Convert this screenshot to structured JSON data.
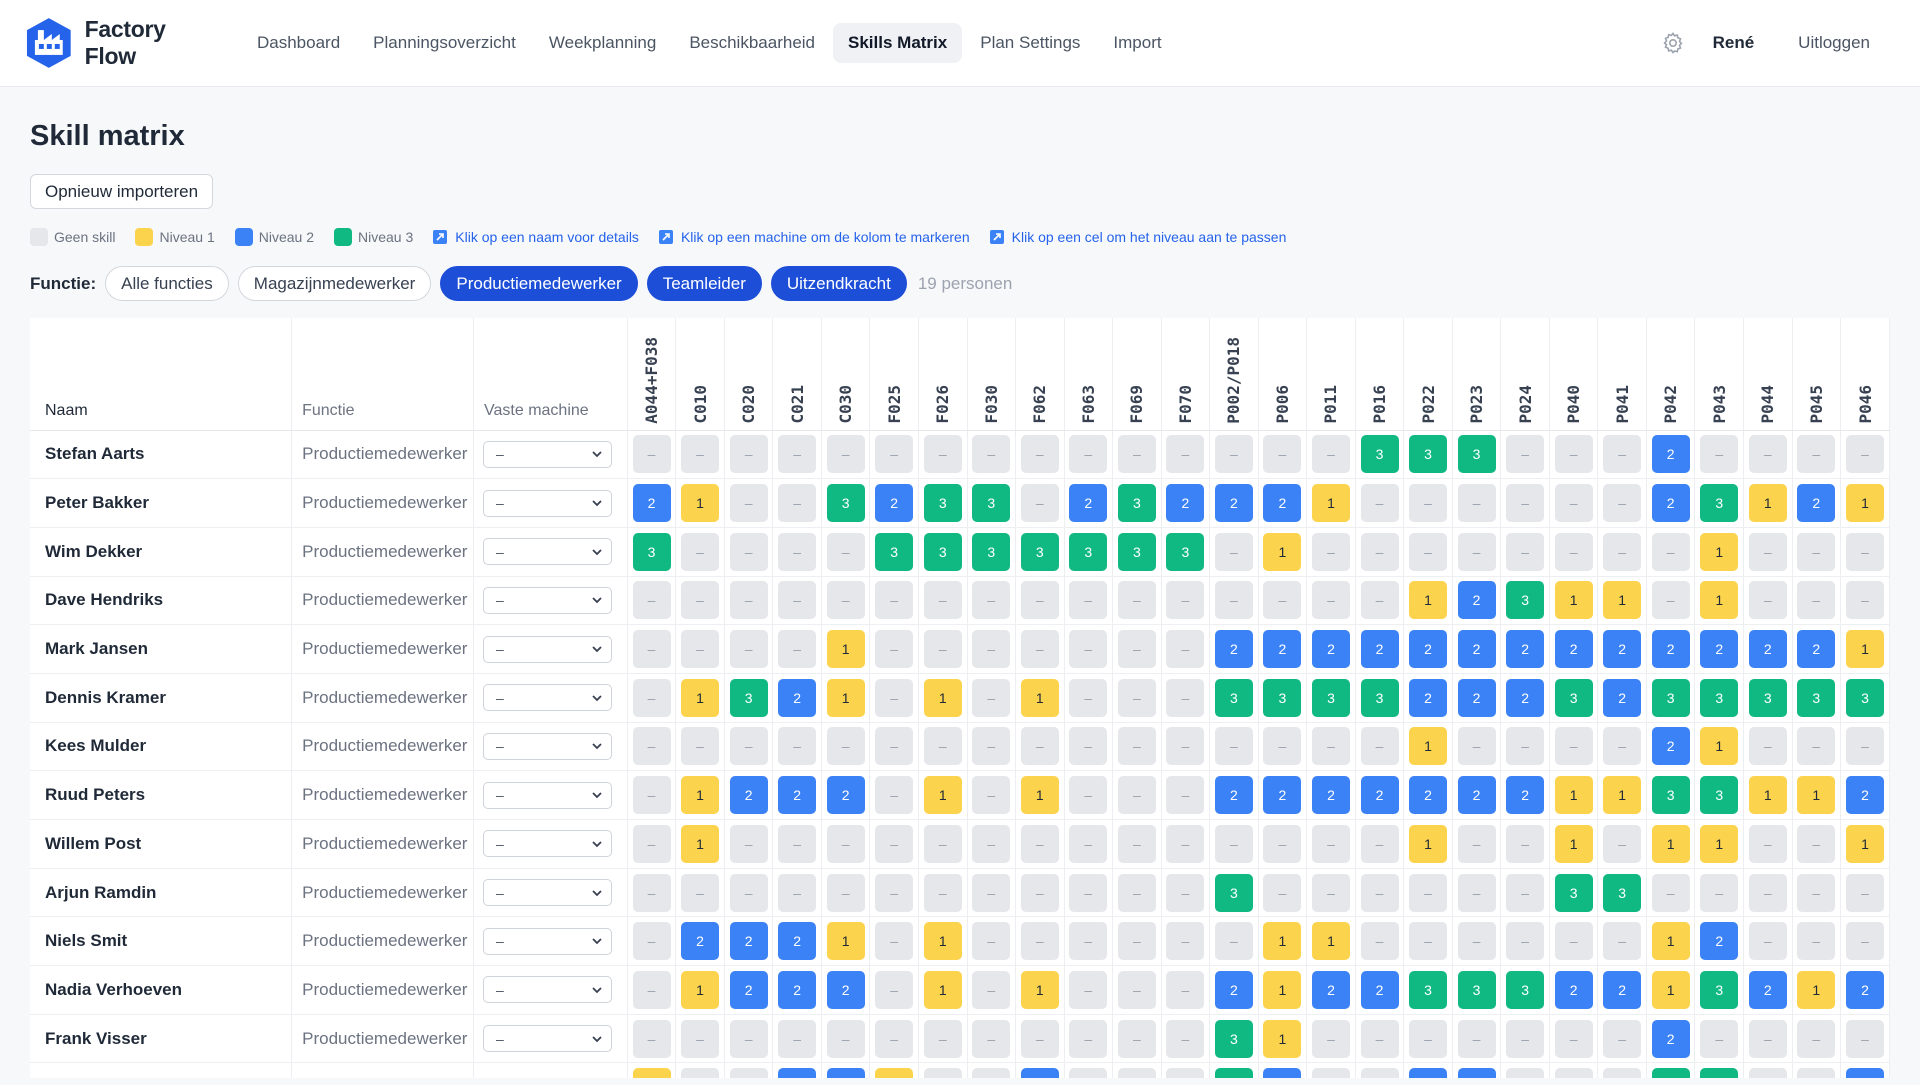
{
  "app": {
    "name": "Factory Flow",
    "logo": "factory-logo"
  },
  "nav": {
    "links": [
      {
        "label": "Dashboard",
        "active": false
      },
      {
        "label": "Planningsoverzicht",
        "active": false
      },
      {
        "label": "Weekplanning",
        "active": false
      },
      {
        "label": "Beschikbaarheid",
        "active": false
      },
      {
        "label": "Skills Matrix",
        "active": true
      },
      {
        "label": "Plan Settings",
        "active": false
      },
      {
        "label": "Import",
        "active": false
      }
    ],
    "settings_icon": "gear-icon",
    "user": "René",
    "logout": "Uitloggen"
  },
  "page": {
    "title": "Skill matrix",
    "reimport_label": "Opnieuw importeren"
  },
  "legend": {
    "items": [
      {
        "label": "Geen skill",
        "color": "#e5e7eb"
      },
      {
        "label": "Niveau 1",
        "color": "#fcd34d"
      },
      {
        "label": "Niveau 2",
        "color": "#3b82f6"
      },
      {
        "label": "Niveau 3",
        "color": "#10b981"
      }
    ],
    "hints": [
      "Klik op een naam voor details",
      "Klik op een machine om de kolom te markeren",
      "Klik op een cel om het niveau aan te passen"
    ]
  },
  "filters": {
    "label": "Functie:",
    "chips": [
      {
        "label": "Alle functies",
        "active": false
      },
      {
        "label": "Magazijnmedewerker",
        "active": false
      },
      {
        "label": "Productiemedewerker",
        "active": true
      },
      {
        "label": "Teamleider",
        "active": true
      },
      {
        "label": "Uitzendkracht",
        "active": true
      }
    ],
    "count": "19 personen"
  },
  "table": {
    "headers": {
      "name": "Naam",
      "function": "Functie",
      "machine": "Vaste machine"
    },
    "empty_value": "–",
    "machines": [
      "A044+F038",
      "C010",
      "C020",
      "C021",
      "C030",
      "F025",
      "F026",
      "F030",
      "F062",
      "F063",
      "F069",
      "F070",
      "P002/P018",
      "P006",
      "P011",
      "P016",
      "P022",
      "P023",
      "P024",
      "P040",
      "P041",
      "P042",
      "P043",
      "P044",
      "P045",
      "P046"
    ],
    "rows": [
      {
        "name": "Stefan Aarts",
        "function": "Productiemedewerker",
        "machine": "–",
        "levels": [
          0,
          0,
          0,
          0,
          0,
          0,
          0,
          0,
          0,
          0,
          0,
          0,
          0,
          0,
          0,
          3,
          3,
          3,
          0,
          0,
          0,
          2,
          0,
          0,
          0,
          0
        ]
      },
      {
        "name": "Peter Bakker",
        "function": "Productiemedewerker",
        "machine": "–",
        "levels": [
          2,
          1,
          0,
          0,
          3,
          2,
          3,
          3,
          0,
          2,
          3,
          2,
          2,
          2,
          1,
          0,
          0,
          0,
          0,
          0,
          0,
          2,
          3,
          1,
          2,
          1
        ]
      },
      {
        "name": "Wim Dekker",
        "function": "Productiemedewerker",
        "machine": "–",
        "levels": [
          3,
          0,
          0,
          0,
          0,
          3,
          3,
          3,
          3,
          3,
          3,
          3,
          0,
          1,
          0,
          0,
          0,
          0,
          0,
          0,
          0,
          0,
          1,
          0,
          0,
          0
        ]
      },
      {
        "name": "Dave Hendriks",
        "function": "Productiemedewerker",
        "machine": "–",
        "levels": [
          0,
          0,
          0,
          0,
          0,
          0,
          0,
          0,
          0,
          0,
          0,
          0,
          0,
          0,
          0,
          0,
          1,
          2,
          3,
          1,
          1,
          0,
          1,
          0,
          0,
          0
        ]
      },
      {
        "name": "Mark Jansen",
        "function": "Productiemedewerker",
        "machine": "–",
        "levels": [
          0,
          0,
          0,
          0,
          1,
          0,
          0,
          0,
          0,
          0,
          0,
          0,
          2,
          2,
          2,
          2,
          2,
          2,
          2,
          2,
          2,
          2,
          2,
          2,
          2,
          1
        ]
      },
      {
        "name": "Dennis Kramer",
        "function": "Productiemedewerker",
        "machine": "–",
        "levels": [
          0,
          1,
          3,
          2,
          1,
          0,
          1,
          0,
          1,
          0,
          0,
          0,
          3,
          3,
          3,
          3,
          2,
          2,
          2,
          3,
          2,
          3,
          3,
          3,
          3,
          3
        ]
      },
      {
        "name": "Kees Mulder",
        "function": "Productiemedewerker",
        "machine": "–",
        "levels": [
          0,
          0,
          0,
          0,
          0,
          0,
          0,
          0,
          0,
          0,
          0,
          0,
          0,
          0,
          0,
          0,
          1,
          0,
          0,
          0,
          0,
          2,
          1,
          0,
          0,
          0
        ]
      },
      {
        "name": "Ruud Peters",
        "function": "Productiemedewerker",
        "machine": "–",
        "levels": [
          0,
          1,
          2,
          2,
          2,
          0,
          1,
          0,
          1,
          0,
          0,
          0,
          2,
          2,
          2,
          2,
          2,
          2,
          2,
          1,
          1,
          3,
          3,
          1,
          1,
          2
        ]
      },
      {
        "name": "Willem Post",
        "function": "Productiemedewerker",
        "machine": "–",
        "levels": [
          0,
          1,
          0,
          0,
          0,
          0,
          0,
          0,
          0,
          0,
          0,
          0,
          0,
          0,
          0,
          0,
          1,
          0,
          0,
          1,
          0,
          1,
          1,
          0,
          0,
          1
        ]
      },
      {
        "name": "Arjun Ramdin",
        "function": "Productiemedewerker",
        "machine": "–",
        "levels": [
          0,
          0,
          0,
          0,
          0,
          0,
          0,
          0,
          0,
          0,
          0,
          0,
          3,
          0,
          0,
          0,
          0,
          0,
          0,
          3,
          3,
          0,
          0,
          0,
          0,
          0
        ]
      },
      {
        "name": "Niels Smit",
        "function": "Productiemedewerker",
        "machine": "–",
        "levels": [
          0,
          2,
          2,
          2,
          1,
          0,
          1,
          0,
          0,
          0,
          0,
          0,
          0,
          1,
          1,
          0,
          0,
          0,
          0,
          0,
          0,
          1,
          2,
          0,
          0,
          0
        ]
      },
      {
        "name": "Nadia Verhoeven",
        "function": "Productiemedewerker",
        "machine": "–",
        "levels": [
          0,
          1,
          2,
          2,
          2,
          0,
          1,
          0,
          1,
          0,
          0,
          0,
          2,
          1,
          2,
          2,
          3,
          3,
          3,
          2,
          2,
          1,
          3,
          2,
          1,
          2
        ]
      },
      {
        "name": "Frank Visser",
        "function": "Productiemedewerker",
        "machine": "–",
        "levels": [
          0,
          0,
          0,
          0,
          0,
          0,
          0,
          0,
          0,
          0,
          0,
          0,
          3,
          1,
          0,
          0,
          0,
          0,
          0,
          0,
          0,
          2,
          0,
          0,
          0,
          0
        ]
      },
      {
        "name": "",
        "function": "",
        "machine": "",
        "levels": [
          1,
          0,
          0,
          2,
          2,
          1,
          0,
          0,
          2,
          0,
          0,
          0,
          3,
          2,
          0,
          0,
          2,
          2,
          0,
          0,
          0,
          3,
          3,
          0,
          0,
          2
        ]
      }
    ]
  }
}
